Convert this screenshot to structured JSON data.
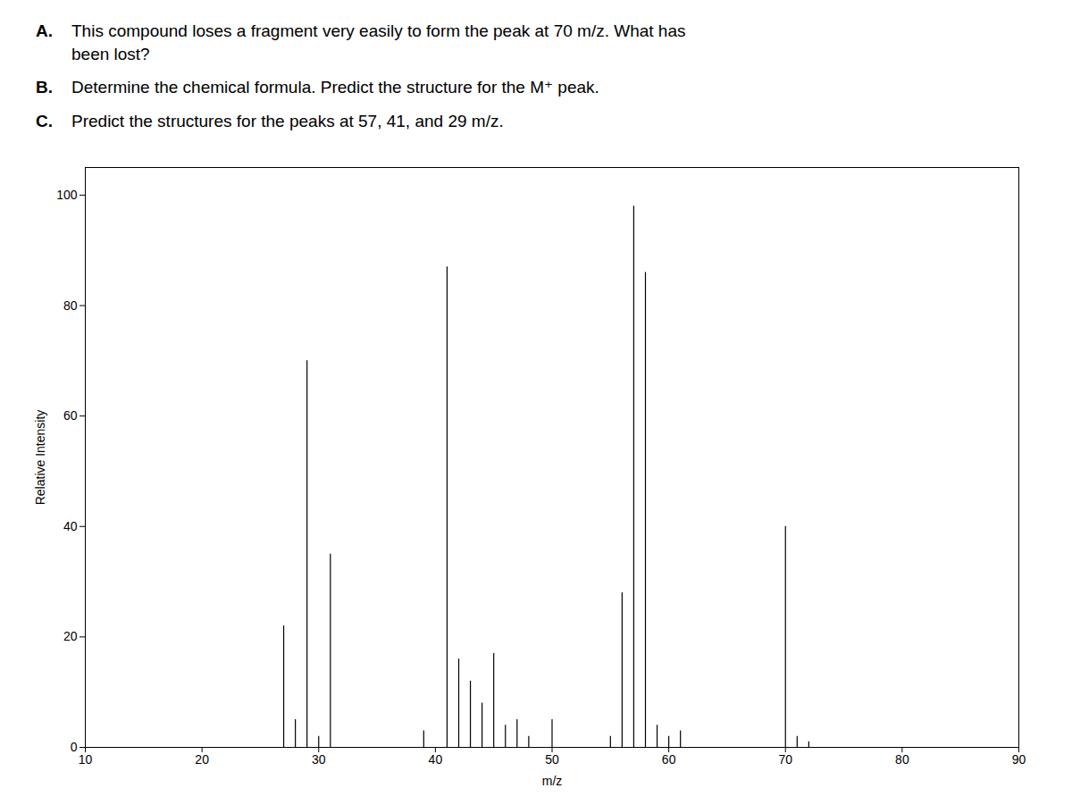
{
  "chart_data": {
    "type": "stem",
    "annotations": [
      {
        "label": "A.",
        "lines": [
          "This compound loses a fragment very easily to form the peak at 70 m/z. What has",
          "been lost?"
        ]
      },
      {
        "label": "B.",
        "lines": [
          "Determine the chemical formula. Predict the structure for the M⁺ peak."
        ]
      },
      {
        "label": "C.",
        "lines": [
          "Predict the structures for the peaks at 57, 41, and 29 m/z."
        ]
      }
    ],
    "xlabel": "m/z",
    "ylabel": "Relative Intensity",
    "x": [
      27,
      28,
      29,
      30,
      31,
      39,
      41,
      42,
      43,
      44,
      45,
      46,
      47,
      48,
      50,
      55,
      56,
      57,
      58,
      59,
      60,
      61,
      70,
      71,
      72
    ],
    "values": [
      22,
      5,
      70,
      2,
      35,
      3,
      87,
      16,
      12,
      8,
      17,
      4,
      5,
      2,
      5,
      2,
      28,
      98,
      86,
      4,
      2,
      3,
      40,
      2,
      1
    ],
    "color": "#000000",
    "xlim": [
      10,
      90
    ],
    "xticks": [
      10,
      20,
      30,
      40,
      50,
      60,
      70,
      80,
      90
    ],
    "ylim": [
      0,
      105
    ],
    "yticks": [
      0,
      20,
      40,
      60,
      80,
      100
    ],
    "grid": false
  }
}
